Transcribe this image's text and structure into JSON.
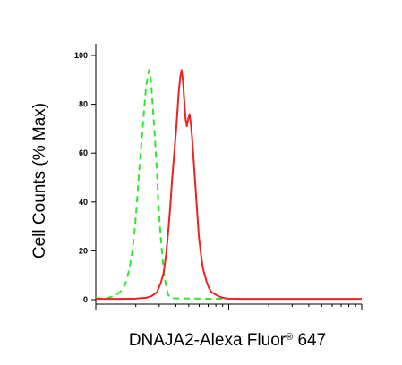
{
  "chart_data": {
    "type": "line",
    "title": "",
    "xlabel_main": "DNAJA2-Alexa Fluor",
    "xlabel_sup": "®",
    "xlabel_end": " 647",
    "ylabel": "Cell Counts (% Max)",
    "x_scale": "log",
    "x_axis_tick_labels": "none",
    "ylim": [
      0,
      100
    ],
    "yticks": [
      0,
      20,
      40,
      60,
      80,
      100
    ],
    "ytick_labels": [
      "0",
      "20",
      "40",
      "60",
      "80",
      "100"
    ],
    "grid": false,
    "legend": "none",
    "series": [
      {
        "style": "dashed",
        "color": "#2ee82e",
        "points": [
          [
            0.0,
            0.5
          ],
          [
            0.08,
            0.6
          ],
          [
            0.14,
            1.5
          ],
          [
            0.18,
            3
          ],
          [
            0.22,
            6
          ],
          [
            0.25,
            12
          ],
          [
            0.27,
            18
          ],
          [
            0.29,
            27
          ],
          [
            0.31,
            40
          ],
          [
            0.325,
            52
          ],
          [
            0.34,
            62
          ],
          [
            0.355,
            72
          ],
          [
            0.37,
            82
          ],
          [
            0.38,
            88
          ],
          [
            0.39,
            91
          ],
          [
            0.4,
            94
          ],
          [
            0.41,
            92
          ],
          [
            0.42,
            86
          ],
          [
            0.43,
            78
          ],
          [
            0.445,
            66
          ],
          [
            0.46,
            52
          ],
          [
            0.47,
            40
          ],
          [
            0.485,
            28
          ],
          [
            0.5,
            18
          ],
          [
            0.515,
            10
          ],
          [
            0.53,
            5
          ],
          [
            0.545,
            2
          ],
          [
            0.56,
            0.8
          ],
          [
            0.6,
            0.5
          ],
          [
            0.66,
            0.5
          ],
          [
            0.8,
            0.4
          ],
          [
            1.0,
            0.3
          ]
        ]
      },
      {
        "style": "solid",
        "color": "#ee2222",
        "points": [
          [
            0.0,
            0.3
          ],
          [
            0.2,
            0.3
          ],
          [
            0.3,
            0.4
          ],
          [
            0.38,
            0.8
          ],
          [
            0.42,
            1.5
          ],
          [
            0.46,
            3
          ],
          [
            0.49,
            7
          ],
          [
            0.51,
            11
          ],
          [
            0.53,
            19
          ],
          [
            0.545,
            28
          ],
          [
            0.56,
            38
          ],
          [
            0.575,
            50
          ],
          [
            0.59,
            60
          ],
          [
            0.605,
            70
          ],
          [
            0.615,
            78
          ],
          [
            0.625,
            86
          ],
          [
            0.635,
            91
          ],
          [
            0.645,
            94
          ],
          [
            0.655,
            90
          ],
          [
            0.665,
            82
          ],
          [
            0.675,
            74
          ],
          [
            0.685,
            71
          ],
          [
            0.695,
            74
          ],
          [
            0.705,
            76
          ],
          [
            0.715,
            72
          ],
          [
            0.725,
            66
          ],
          [
            0.735,
            58
          ],
          [
            0.745,
            50
          ],
          [
            0.755,
            42
          ],
          [
            0.765,
            34
          ],
          [
            0.775,
            26
          ],
          [
            0.79,
            19
          ],
          [
            0.805,
            13
          ],
          [
            0.82,
            10
          ],
          [
            0.835,
            7
          ],
          [
            0.85,
            5
          ],
          [
            0.87,
            3
          ],
          [
            0.89,
            2.5
          ],
          [
            0.91,
            1.8
          ],
          [
            0.94,
            1
          ],
          [
            0.97,
            0.6
          ],
          [
            1.0,
            0.4
          ],
          [
            1.1,
            0.3
          ],
          [
            1.4,
            0.3
          ],
          [
            1.8,
            0.3
          ],
          [
            2.0,
            0.3
          ]
        ]
      }
    ]
  }
}
